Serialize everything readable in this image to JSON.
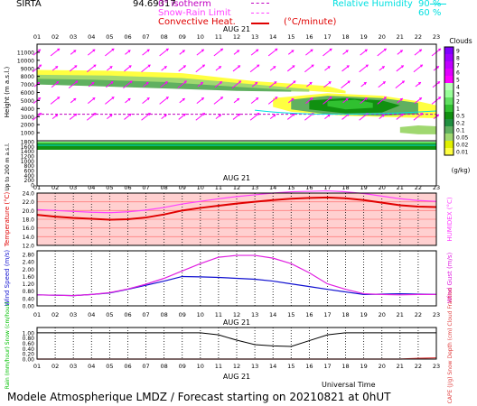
{
  "header": {
    "station": "SIRTA",
    "coords": "94.69317",
    "legend_isotherm": "0° isotherm",
    "legend_snowrain": "Snow-Rain Limit",
    "legend_convective": "Convective Heat.",
    "convective_unit": "(°C/minute)",
    "legend_rh": "Relative Humidity",
    "rh_90": "90 %",
    "rh_60": "60 %"
  },
  "footer": {
    "text": "Modele Atmospherique LMDZ / Forecast starting on 20210821 at 0hUT",
    "time_label": "Universal Time"
  },
  "colors": {
    "temperature": "#e00000",
    "humidex": "#ff40ff",
    "wind_speed": "#1010d0",
    "wind_gust": "#e020e0",
    "cloud_fraction": "#000000",
    "rain": "#00c000",
    "cape": "#e04040",
    "wind_arrow": "#ff00ff",
    "isotherm": "#c000c0",
    "rh": "#00e0e0"
  },
  "chart_data": [
    {
      "type": "heatmap",
      "title": "",
      "date_label": "AUG 21",
      "x_label": "",
      "x_ticks": [
        "01",
        "02",
        "03",
        "04",
        "05",
        "06",
        "07",
        "08",
        "09",
        "10",
        "11",
        "12",
        "13",
        "14",
        "15",
        "16",
        "17",
        "18",
        "19",
        "20",
        "21",
        "22",
        "23"
      ],
      "y_label": "Height (m a.s.l.)",
      "y_ticks": [
        11000,
        10000,
        9000,
        8000,
        7000,
        6000,
        5000,
        4000,
        3000,
        2000,
        1000
      ],
      "ylim": [
        0,
        12000
      ],
      "lower_label": "Up to 200 m a.s.l.",
      "lower_ticks": [
        1800,
        1600,
        1400,
        1200,
        1000,
        800,
        600,
        400,
        200,
        0
      ],
      "colorbar_label": "Clouds",
      "colorbar_unit": "(g/kg)",
      "colorbar_ticks": [
        "9",
        "8",
        "7",
        "6",
        "5",
        "4",
        "3",
        "2",
        "1",
        "0.5",
        "0.2",
        "0.1",
        "0.05",
        "0.02",
        "0.01"
      ],
      "colorbar_colors": [
        "#8000ff",
        "#a000ff",
        "#c000ff",
        "#e000ff",
        "#ff00ff",
        "#b8ffb8",
        "#98ff98",
        "#60e060",
        "#30c030",
        "#109010",
        "#209040",
        "#60b060",
        "#a0d870",
        "#e0f000",
        "#ffff40"
      ],
      "cloud_layers": [
        {
          "x": [
            1,
            5,
            9,
            13,
            17,
            18,
            18,
            14,
            9,
            5,
            1
          ],
          "y": [
            8800,
            8700,
            8400,
            7400,
            6800,
            6200,
            5900,
            6500,
            7000,
            7300,
            7400
          ],
          "level": "0.01"
        },
        {
          "x": [
            1,
            5,
            9,
            13,
            16,
            16,
            13,
            9,
            5,
            1
          ],
          "y": [
            8200,
            8100,
            7800,
            7000,
            6400,
            6100,
            6200,
            6600,
            6900,
            7100
          ],
          "level": "0.05"
        },
        {
          "x": [
            1,
            4,
            8,
            12,
            15,
            15,
            12,
            8,
            4,
            1
          ],
          "y": [
            7700,
            7600,
            7300,
            6700,
            6300,
            6100,
            6200,
            6500,
            6800,
            7000
          ],
          "level": "0.1"
        },
        {
          "x": [
            14,
            17,
            20,
            22,
            23,
            23,
            21,
            18,
            15,
            14
          ],
          "y": [
            5300,
            5900,
            5600,
            4900,
            4400,
            2800,
            2900,
            3100,
            3600,
            4200
          ],
          "level": "0.01"
        },
        {
          "x": [
            15,
            17,
            20,
            22,
            22,
            20,
            17,
            15
          ],
          "y": [
            5100,
            5600,
            5300,
            4700,
            3300,
            3100,
            3300,
            3900
          ],
          "level": "0.1"
        },
        {
          "x": [
            16,
            18,
            20,
            21,
            20,
            18,
            16
          ],
          "y": [
            5000,
            5300,
            5000,
            4400,
            3500,
            3400,
            3900
          ],
          "level": "0.5"
        },
        {
          "x": [
            17,
            18.5,
            19.5,
            19.5,
            18,
            17
          ],
          "y": [
            4900,
            5100,
            4700,
            4100,
            3900,
            4300
          ],
          "level": "1"
        },
        {
          "x": [
            21,
            22,
            23,
            23,
            22,
            21
          ],
          "y": [
            1700,
            1900,
            1800,
            800,
            800,
            1000
          ],
          "level": "0.05"
        }
      ],
      "isotherm_height": 3300,
      "wind_barbs": "speed-scaled arrows at each hour",
      "low_band_mixing_ratio": "high"
    },
    {
      "type": "line",
      "title": "AUG 21",
      "x": [
        1,
        2,
        3,
        4,
        5,
        6,
        7,
        8,
        9,
        10,
        11,
        12,
        13,
        14,
        15,
        16,
        17,
        18,
        19,
        20,
        21,
        22,
        23
      ],
      "ylabel": "Temperature (°C)",
      "y2label": "HUMIDEX (°C)",
      "ylim": [
        12,
        24
      ],
      "y_ticks": [
        "24.0",
        "22.0",
        "20.0",
        "18.0",
        "16.0",
        "14.0",
        "12.0"
      ],
      "series": [
        {
          "name": "Temperature",
          "values": [
            19.0,
            18.6,
            18.3,
            18.1,
            17.9,
            18.0,
            18.4,
            19.1,
            20.0,
            20.6,
            21.1,
            21.6,
            22.0,
            22.4,
            22.7,
            22.9,
            23.0,
            22.8,
            22.4,
            21.8,
            21.2,
            20.9,
            20.8
          ]
        },
        {
          "name": "HUMIDEX",
          "values": [
            20.2,
            20.0,
            19.8,
            19.6,
            19.5,
            19.7,
            20.1,
            20.7,
            21.5,
            22.1,
            22.7,
            23.2,
            23.6,
            24.0,
            24.3,
            24.4,
            24.5,
            24.3,
            23.9,
            23.3,
            22.7,
            22.3,
            22.1
          ]
        }
      ]
    },
    {
      "type": "line",
      "title": "",
      "x": [
        1,
        2,
        3,
        4,
        5,
        6,
        7,
        8,
        9,
        10,
        11,
        12,
        13,
        14,
        15,
        16,
        17,
        18,
        19,
        20,
        21,
        22,
        23
      ],
      "ylabel": "Wind Speed (m/s)",
      "y2label": "Wind Gust (m/s)",
      "ylim": [
        0,
        3
      ],
      "y_ticks": [
        "2.80",
        "2.40",
        "2.00",
        "1.60",
        "1.20",
        "0.80",
        "0.40",
        "0.00"
      ],
      "series": [
        {
          "name": "Wind Speed",
          "values": [
            0.6,
            0.58,
            0.56,
            0.62,
            0.7,
            0.9,
            1.12,
            1.35,
            1.6,
            1.58,
            1.55,
            1.5,
            1.45,
            1.35,
            1.2,
            1.05,
            0.9,
            0.76,
            0.62,
            0.64,
            0.66,
            0.64,
            0.62
          ]
        },
        {
          "name": "Wind Gust",
          "values": [
            0.6,
            0.58,
            0.56,
            0.62,
            0.72,
            0.92,
            1.18,
            1.5,
            1.9,
            2.3,
            2.65,
            2.75,
            2.75,
            2.6,
            2.3,
            1.8,
            1.2,
            0.9,
            0.66,
            0.62,
            0.6,
            0.62,
            0.62
          ]
        }
      ]
    },
    {
      "type": "line",
      "title": "AUG 21",
      "x": [
        1,
        2,
        3,
        4,
        5,
        6,
        7,
        8,
        9,
        10,
        11,
        12,
        13,
        14,
        15,
        16,
        17,
        18,
        19,
        20,
        21,
        22,
        23
      ],
      "ylabel": "Rain (mm/hour) Snow (cm/hour)",
      "y2label": "CAPE (J/g) Snow Depth (cm) Cloud Fraction",
      "ylim": [
        0,
        1.2
      ],
      "y_ticks": [
        "1.00",
        "0.80",
        "0.60",
        "0.40",
        "0.20",
        "0.00"
      ],
      "series": [
        {
          "name": "Cloud Fraction",
          "values": [
            1.0,
            1.0,
            1.0,
            1.0,
            1.0,
            1.0,
            1.0,
            1.0,
            1.0,
            1.0,
            0.92,
            0.72,
            0.55,
            0.5,
            0.48,
            0.7,
            0.92,
            1.0,
            1.0,
            1.0,
            1.0,
            1.0,
            1.0
          ]
        },
        {
          "name": "Rain",
          "values": [
            0,
            0,
            0,
            0,
            0,
            0,
            0,
            0,
            0,
            0,
            0,
            0,
            0,
            0,
            0,
            0,
            0,
            0,
            0,
            0,
            0,
            0,
            0
          ]
        },
        {
          "name": "CAPE",
          "values": [
            0,
            0,
            0,
            0,
            0,
            0,
            0,
            0,
            0,
            0,
            0,
            0,
            0,
            0,
            0,
            0,
            0,
            0,
            0,
            0,
            0,
            0.03,
            0.05
          ]
        }
      ]
    }
  ]
}
